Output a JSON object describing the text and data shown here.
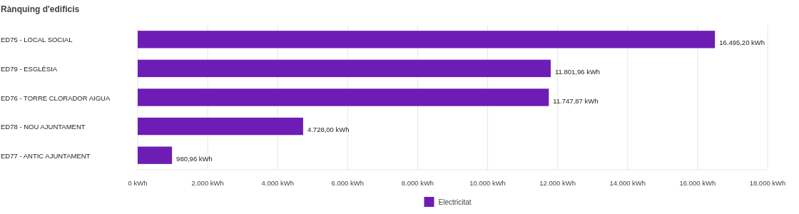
{
  "chart_data": {
    "type": "bar",
    "orientation": "horizontal",
    "title": "Rànquing d'edificis",
    "categories": [
      "ED75 - LOCAL SOCIAL",
      "ED79 - ESGLÈSIA",
      "ED76 - TORRE CLORADOR AIGUA",
      "ED78 - NOU AJUNTAMENT",
      "ED77 - ANTIC AJUNTAMENT"
    ],
    "series": [
      {
        "name": "Electricitat",
        "color": "#6d1db5",
        "values": [
          16495.2,
          11801.96,
          11747.87,
          4728.0,
          980.96
        ],
        "value_labels": [
          "16.495,20 kWh",
          "11.801,96 kWh",
          "11.747,87 kWh",
          "4.728,00 kWh",
          "980,96 kWh"
        ]
      }
    ],
    "xlim": [
      0,
      18000
    ],
    "xticks": [
      {
        "value": 0,
        "label": "0 kWh"
      },
      {
        "value": 2000,
        "label": "2.000 kWh"
      },
      {
        "value": 4000,
        "label": "4.000 kWh"
      },
      {
        "value": 6000,
        "label": "6.000 kWh"
      },
      {
        "value": 8000,
        "label": "8.000 kWh"
      },
      {
        "value": 10000,
        "label": "10.000 kWh"
      },
      {
        "value": 12000,
        "label": "12.000 kWh"
      },
      {
        "value": 14000,
        "label": "14.000 kWh"
      },
      {
        "value": 16000,
        "label": "16.000 kWh"
      },
      {
        "value": 18000,
        "label": "18.000 kWh"
      }
    ],
    "grid": "x",
    "legend": "bottom"
  }
}
